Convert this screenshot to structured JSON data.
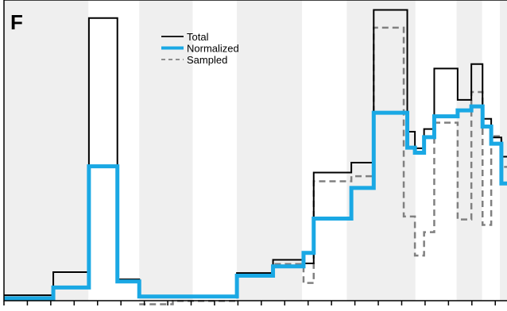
{
  "panel_label": "F",
  "colors": {
    "total": "#000000",
    "normalized": "#1aa8e4",
    "sampled": "#808080",
    "band": "#efefef",
    "frame": "#000000"
  },
  "chart_data": {
    "type": "line",
    "step": true,
    "title": "",
    "xlabel": "",
    "ylabel": "",
    "grid": false,
    "legend": {
      "position": "top-center"
    },
    "xlim": [
      0,
      100
    ],
    "ylim": [
      0,
      100
    ],
    "x_ticks": [
      0,
      4.6,
      9.2,
      13.8,
      18.4,
      23.0,
      27.6,
      32.2,
      36.8,
      41.4,
      46.0,
      50.6,
      55.2,
      59.8,
      64.4,
      69.0,
      73.6,
      78.2,
      82.8,
      87.4,
      92.0,
      96.6
    ],
    "shaded_bands": [
      [
        0,
        16.6
      ],
      [
        26.6,
        37.1
      ],
      [
        45.8,
        58.6
      ],
      [
        67.4,
        80.9
      ],
      [
        89.0,
        94.0
      ],
      [
        97.5,
        100
      ]
    ],
    "series": [
      {
        "name": "Total",
        "style": "solid",
        "points": [
          [
            0,
            1.8
          ],
          [
            9.7,
            9.5
          ],
          [
            16.7,
            94.0
          ],
          [
            22.3,
            7.1
          ],
          [
            26.6,
            1.1
          ],
          [
            45.8,
            9.2
          ],
          [
            52.9,
            13.6
          ],
          [
            58.9,
            12.4
          ],
          [
            60.9,
            42.6
          ],
          [
            68.3,
            45.9
          ],
          [
            72.7,
            96.7
          ],
          [
            79.3,
            56.2
          ],
          [
            80.8,
            50.7
          ],
          [
            82.6,
            57.1
          ],
          [
            84.6,
            77.2
          ],
          [
            89.2,
            66.8
          ],
          [
            91.9,
            78.7
          ],
          [
            94.1,
            60.5
          ],
          [
            95.8,
            54.3
          ],
          [
            97.8,
            47.9
          ],
          [
            100,
            47.9
          ]
        ]
      },
      {
        "name": "Normalized",
        "style": "thick",
        "points": [
          [
            0,
            0.8
          ],
          [
            9.7,
            4.4
          ],
          [
            16.7,
            44.7
          ],
          [
            22.3,
            6.4
          ],
          [
            26.6,
            1.4
          ],
          [
            45.8,
            8.3
          ],
          [
            52.9,
            11.4
          ],
          [
            58.9,
            15.9
          ],
          [
            60.9,
            27.3
          ],
          [
            68.3,
            37.5
          ],
          [
            72.7,
            62.5
          ],
          [
            79.3,
            50.9
          ],
          [
            80.8,
            49.2
          ],
          [
            82.6,
            54.4
          ],
          [
            84.6,
            61.3
          ],
          [
            89.2,
            63.3
          ],
          [
            91.9,
            64.6
          ],
          [
            94.1,
            57.9
          ],
          [
            95.8,
            52.2
          ],
          [
            97.8,
            39.0
          ],
          [
            100,
            39.0
          ]
        ]
      },
      {
        "name": "Sampled",
        "style": "dashed",
        "points": [
          [
            26.6,
            -1.2
          ],
          [
            33.2,
            -0.1
          ],
          [
            45.8,
            8.1
          ],
          [
            52.9,
            12.2
          ],
          [
            58.9,
            5.9
          ],
          [
            60.9,
            39.7
          ],
          [
            68.3,
            41.4
          ],
          [
            72.7,
            90.8
          ],
          [
            78.6,
            28.0
          ],
          [
            80.8,
            15.0
          ],
          [
            82.6,
            22.8
          ],
          [
            84.6,
            59.2
          ],
          [
            89.2,
            27.0
          ],
          [
            91.9,
            69.4
          ],
          [
            94.1,
            25.2
          ],
          [
            95.8,
            54.7
          ],
          [
            97.8,
            44.5
          ],
          [
            100,
            44.5
          ]
        ]
      }
    ]
  }
}
